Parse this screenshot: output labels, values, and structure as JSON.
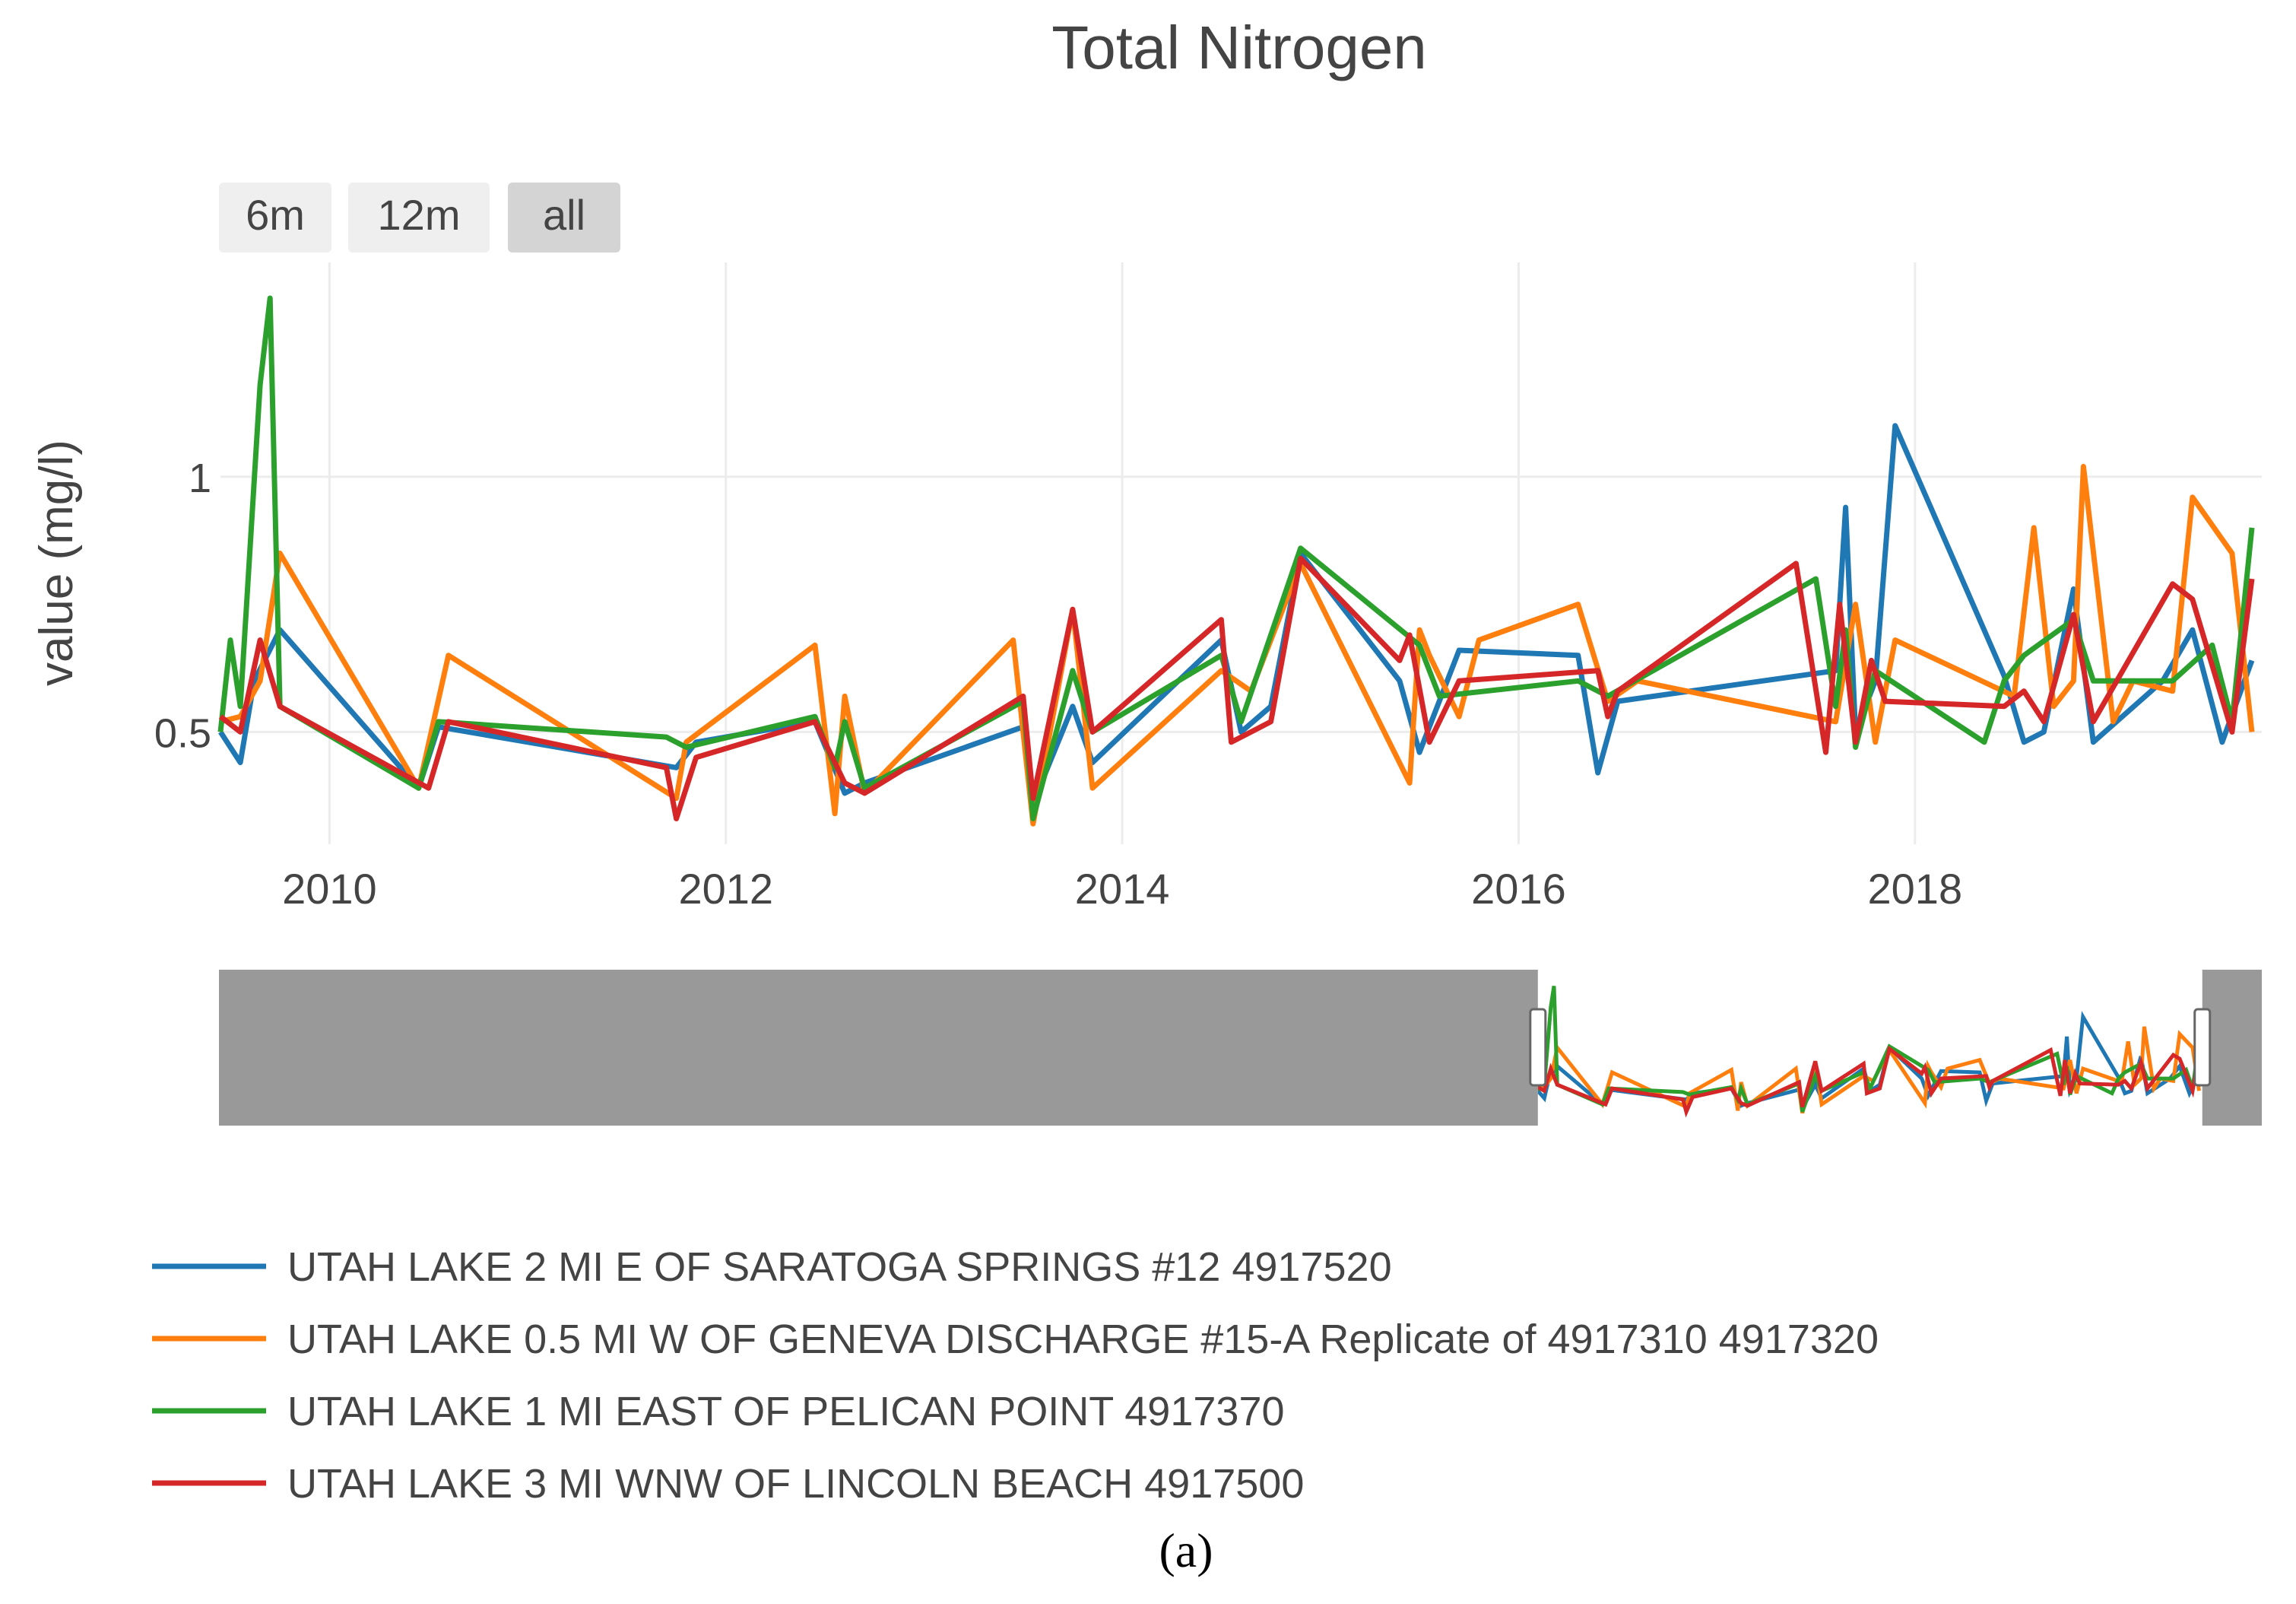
{
  "chart_data": {
    "type": "line",
    "title": "Total Nitrogen",
    "ylabel": "value (mg/l)",
    "xlabel": "",
    "caption": "(a)",
    "xlim": [
      2009.45,
      2019.75
    ],
    "ylim": [
      0.28,
      1.42
    ],
    "y_ticks": [
      0.5,
      1
    ],
    "y_tick_labels": [
      "0.5",
      "1"
    ],
    "x_ticks": [
      2010,
      2012,
      2014,
      2016,
      2018
    ],
    "x_tick_labels": [
      "2010",
      "2012",
      "2014",
      "2016",
      "2018"
    ],
    "grid": true,
    "legend_position": "bottom",
    "range_buttons": [
      {
        "label": "6m",
        "active": false
      },
      {
        "label": "12m",
        "active": false
      },
      {
        "label": "all",
        "active": true
      }
    ],
    "range_slider": {
      "selected_start": 2016.1,
      "selected_end": 2019.45
    },
    "series": [
      {
        "name": "UTAH LAKE 2 MI E OF SARATOGA SPRINGS #12 4917520",
        "color": "#1f77b4",
        "x": [
          2009.45,
          2009.55,
          2009.62,
          2009.75,
          2010.45,
          2010.55,
          2011.75,
          2011.85,
          2012.45,
          2012.6,
          2012.7,
          2013.5,
          2013.55,
          2013.75,
          2013.85,
          2014.5,
          2014.6,
          2014.75,
          2014.9,
          2015.4,
          2015.5,
          2015.7,
          2016.3,
          2016.4,
          2016.5,
          2017.6,
          2017.65,
          2017.7,
          2017.8,
          2017.9,
          2018.45,
          2018.55,
          2018.65,
          2018.8,
          2018.9,
          2019.25,
          2019.4,
          2019.55,
          2019.7
        ],
        "y": [
          0.5,
          0.44,
          0.6,
          0.7,
          0.39,
          0.51,
          0.43,
          0.48,
          0.52,
          0.38,
          0.4,
          0.51,
          0.36,
          0.55,
          0.44,
          0.68,
          0.5,
          0.55,
          0.85,
          0.6,
          0.46,
          0.66,
          0.65,
          0.42,
          0.56,
          0.62,
          0.94,
          0.5,
          0.6,
          1.1,
          0.61,
          0.48,
          0.5,
          0.78,
          0.48,
          0.6,
          0.7,
          0.48,
          0.64
        ]
      },
      {
        "name": "UTAH LAKE 0.5 MI W OF GENEVA DISCHARGE #15-A Replicate of 4917310 4917320",
        "color": "#ff7f0e",
        "x": [
          2009.45,
          2009.55,
          2009.65,
          2009.75,
          2010.45,
          2010.6,
          2011.75,
          2011.8,
          2012.45,
          2012.55,
          2012.6,
          2012.7,
          2013.45,
          2013.55,
          2013.75,
          2013.85,
          2014.5,
          2014.65,
          2014.9,
          2015.45,
          2015.5,
          2015.55,
          2015.7,
          2015.8,
          2016.3,
          2016.45,
          2016.6,
          2017.6,
          2017.7,
          2017.8,
          2017.9,
          2018.5,
          2018.6,
          2018.7,
          2018.8,
          2018.85,
          2019.0,
          2019.1,
          2019.3,
          2019.4,
          2019.6,
          2019.7
        ],
        "y": [
          0.52,
          0.53,
          0.6,
          0.85,
          0.39,
          0.65,
          0.37,
          0.48,
          0.67,
          0.34,
          0.57,
          0.38,
          0.68,
          0.32,
          0.74,
          0.39,
          0.62,
          0.58,
          0.83,
          0.4,
          0.7,
          0.65,
          0.53,
          0.68,
          0.75,
          0.56,
          0.6,
          0.52,
          0.75,
          0.48,
          0.68,
          0.57,
          0.9,
          0.55,
          0.6,
          1.02,
          0.52,
          0.6,
          0.58,
          0.96,
          0.85,
          0.5
        ]
      },
      {
        "name": "UTAH LAKE 1 MI EAST OF PELICAN POINT 4917370",
        "color": "#2ca02c",
        "x": [
          2009.45,
          2009.5,
          2009.55,
          2009.65,
          2009.7,
          2009.75,
          2010.45,
          2010.55,
          2011.7,
          2011.8,
          2012.45,
          2012.55,
          2012.6,
          2012.7,
          2013.5,
          2013.55,
          2013.75,
          2013.85,
          2014.5,
          2014.6,
          2014.9,
          2015.5,
          2015.6,
          2016.3,
          2016.45,
          2017.5,
          2017.6,
          2017.65,
          2017.7,
          2017.8,
          2018.35,
          2018.45,
          2018.55,
          2018.8,
          2018.9,
          2019.3,
          2019.5,
          2019.6,
          2019.7
        ],
        "y": [
          0.5,
          0.68,
          0.55,
          1.18,
          1.35,
          0.55,
          0.39,
          0.52,
          0.49,
          0.47,
          0.53,
          0.43,
          0.52,
          0.39,
          0.56,
          0.33,
          0.62,
          0.5,
          0.65,
          0.52,
          0.86,
          0.67,
          0.57,
          0.6,
          0.57,
          0.8,
          0.55,
          0.7,
          0.47,
          0.62,
          0.48,
          0.6,
          0.65,
          0.72,
          0.6,
          0.6,
          0.67,
          0.52,
          0.9
        ]
      },
      {
        "name": "UTAH LAKE 3 MI WNW OF LINCOLN BEACH 4917500",
        "color": "#d62728",
        "x": [
          2009.45,
          2009.55,
          2009.65,
          2009.75,
          2010.5,
          2010.6,
          2011.7,
          2011.75,
          2011.85,
          2012.45,
          2012.6,
          2012.7,
          2013.5,
          2013.55,
          2013.75,
          2013.85,
          2014.5,
          2014.55,
          2014.75,
          2014.9,
          2015.4,
          2015.45,
          2015.55,
          2015.7,
          2016.4,
          2016.45,
          2016.5,
          2017.4,
          2017.55,
          2017.62,
          2017.7,
          2017.78,
          2017.85,
          2018.45,
          2018.55,
          2018.65,
          2018.8,
          2018.9,
          2019.3,
          2019.4,
          2019.6,
          2019.7
        ],
        "y": [
          0.53,
          0.5,
          0.68,
          0.55,
          0.39,
          0.52,
          0.43,
          0.33,
          0.45,
          0.52,
          0.4,
          0.38,
          0.57,
          0.37,
          0.74,
          0.5,
          0.72,
          0.48,
          0.52,
          0.84,
          0.64,
          0.69,
          0.48,
          0.6,
          0.62,
          0.53,
          0.58,
          0.83,
          0.46,
          0.75,
          0.48,
          0.64,
          0.56,
          0.55,
          0.58,
          0.52,
          0.73,
          0.52,
          0.79,
          0.76,
          0.5,
          0.8
        ]
      }
    ]
  }
}
